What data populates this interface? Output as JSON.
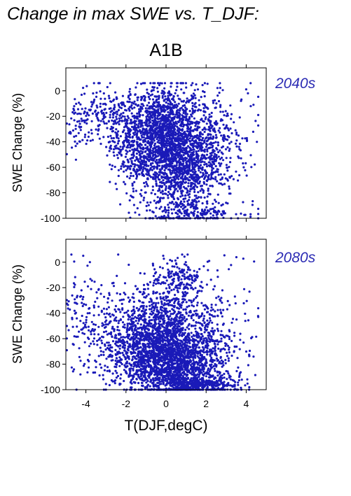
{
  "figure": {
    "title": "Change in max SWE vs. T_DJF:",
    "scenario": "A1B",
    "xlabel": "T(DJF,degC)",
    "point_color": "#1a1ab8",
    "label_color": "#2b2bb4"
  },
  "chart_data": [
    {
      "type": "scatter",
      "period": "2040s",
      "xlabel": "T(DJF,degC)",
      "ylabel": "SWE Change (%)",
      "xlim": [
        -5,
        5
      ],
      "ylim": [
        -100,
        18
      ],
      "xticks": [
        -4,
        -2,
        0,
        2,
        4
      ],
      "yticks": [
        0,
        -20,
        -40,
        -60,
        -80,
        -100
      ],
      "tick_labels_x": false,
      "clusters": [
        {
          "x": 0.0,
          "y": -30,
          "sx": 0.9,
          "sy": 17,
          "n": 1100
        },
        {
          "x": 0.7,
          "y": -62,
          "sx": 0.9,
          "sy": 18,
          "n": 900
        },
        {
          "x": -1.4,
          "y": -42,
          "sx": 0.7,
          "sy": 18,
          "n": 500
        },
        {
          "x": 2.2,
          "y": -40,
          "sx": 0.6,
          "sy": 22,
          "n": 300
        },
        {
          "x": -3.0,
          "y": -22,
          "sx": 0.9,
          "sy": 12,
          "n": 180
        },
        {
          "x": 1.5,
          "y": -95,
          "sx": 1.2,
          "sy": 4,
          "n": 170
        },
        {
          "x": -4.4,
          "y": -30,
          "sx": 0.4,
          "sy": 10,
          "n": 40
        },
        {
          "x": 3.9,
          "y": -40,
          "sx": 0.4,
          "sy": 25,
          "n": 40
        }
      ]
    },
    {
      "type": "scatter",
      "period": "2080s",
      "xlabel": "T(DJF,degC)",
      "ylabel": "SWE Change (%)",
      "xlim": [
        -5,
        5
      ],
      "ylim": [
        -100,
        18
      ],
      "xticks": [
        -4,
        -2,
        0,
        2,
        4
      ],
      "yticks": [
        0,
        -20,
        -40,
        -60,
        -80,
        -100
      ],
      "tick_labels_x": true,
      "clusters": [
        {
          "x": 0.4,
          "y": -80,
          "sx": 1.1,
          "sy": 13,
          "n": 1500
        },
        {
          "x": 0.0,
          "y": -50,
          "sx": 0.9,
          "sy": 17,
          "n": 800
        },
        {
          "x": -1.5,
          "y": -65,
          "sx": 0.8,
          "sy": 15,
          "n": 500
        },
        {
          "x": 0.7,
          "y": -12,
          "sx": 0.6,
          "sy": 8,
          "n": 150
        },
        {
          "x": 1.8,
          "y": -96,
          "sx": 0.9,
          "sy": 3,
          "n": 300
        },
        {
          "x": 2.3,
          "y": -60,
          "sx": 0.6,
          "sy": 22,
          "n": 200
        },
        {
          "x": -3.2,
          "y": -50,
          "sx": 0.8,
          "sy": 20,
          "n": 150
        },
        {
          "x": -4.3,
          "y": -40,
          "sx": 0.5,
          "sy": 22,
          "n": 60
        },
        {
          "x": 3.9,
          "y": -55,
          "sx": 0.4,
          "sy": 30,
          "n": 40
        }
      ]
    }
  ]
}
